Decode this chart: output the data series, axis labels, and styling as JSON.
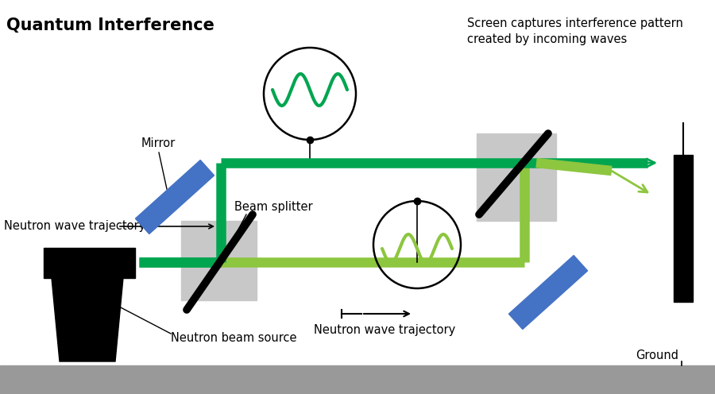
{
  "title": "Quantum Interference",
  "bg_color": "#ffffff",
  "ground_color": "#999999",
  "dark_green": "#00a550",
  "light_green": "#8dc63f",
  "blue_mirror": "#4472c4",
  "black": "#000000",
  "gray_box": "#c8c8c8",
  "screen_text": "Screen captures interference pattern\ncreated by incoming waves",
  "mirror_label": "Mirror",
  "beam_splitter_label": "Beam splitter",
  "neutron_wave_left": "Neutron wave trajectory",
  "neutron_wave_right": "Neutron wave trajectory",
  "neutron_beam_label": "Neutron beam source",
  "ground_label": "Ground"
}
